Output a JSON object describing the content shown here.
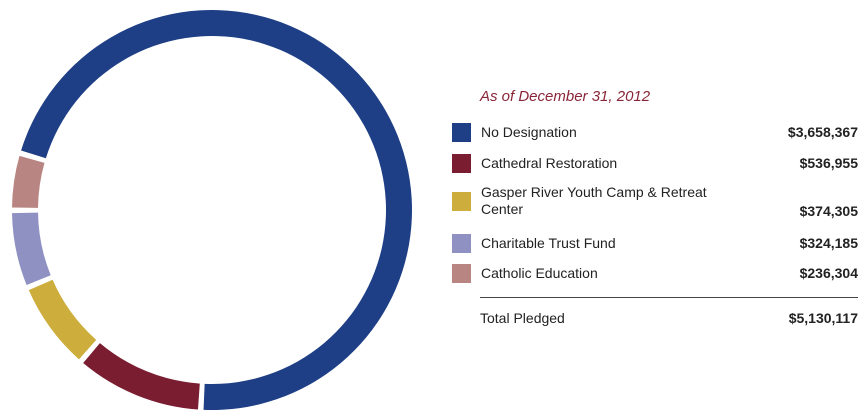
{
  "chart_data": {
    "type": "pie",
    "subtitle": "As of December 31, 2012",
    "slices": [
      {
        "label": "No Designation",
        "value": 3658367,
        "display": "$3,658,367",
        "color": "#1e3f86"
      },
      {
        "label": "Cathedral Restoration",
        "value": 536955,
        "display": "$536,955",
        "color": "#7a1d30"
      },
      {
        "label": "Gasper River Youth Camp & Retreat Center",
        "display": "$374,305",
        "value": 374305,
        "color": "#cdae3c"
      },
      {
        "label": "Charitable Trust Fund",
        "value": 324185,
        "display": "$324,185",
        "color": "#8f91c2"
      },
      {
        "label": "Catholic Education",
        "value": 236304,
        "display": "$236,304",
        "color": "#b88582"
      }
    ],
    "total": {
      "label": "Total Pledged",
      "display": "$5,130,117",
      "value": 5130117
    },
    "legend_position": "right"
  }
}
